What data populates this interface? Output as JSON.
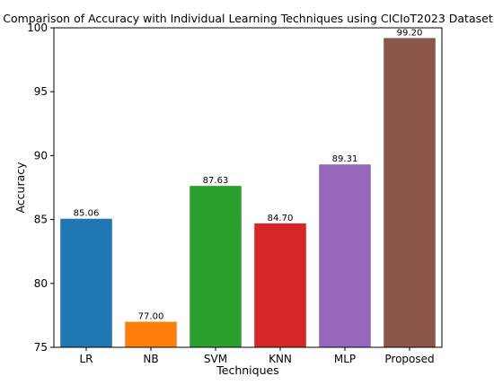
{
  "chart_data": {
    "type": "bar",
    "title": "Comparison of Accuracy with Individual Learning Techniques using CICIoT2023 Dataset",
    "xlabel": "Techniques",
    "ylabel": "Accuracy",
    "ylim": [
      75,
      100
    ],
    "yticks": [
      75,
      80,
      85,
      90,
      95,
      100
    ],
    "categories": [
      "LR",
      "NB",
      "SVM",
      "KNN",
      "MLP",
      "Proposed"
    ],
    "values": [
      85.06,
      77.0,
      87.63,
      84.7,
      89.31,
      99.2
    ],
    "value_labels": [
      "85.06",
      "77.00",
      "87.63",
      "84.70",
      "89.31",
      "99.20"
    ],
    "colors": [
      "#1f77b4",
      "#ff7f0e",
      "#2ca02c",
      "#d62728",
      "#9467bd",
      "#8c564b"
    ],
    "grid": false,
    "legend": "none"
  }
}
